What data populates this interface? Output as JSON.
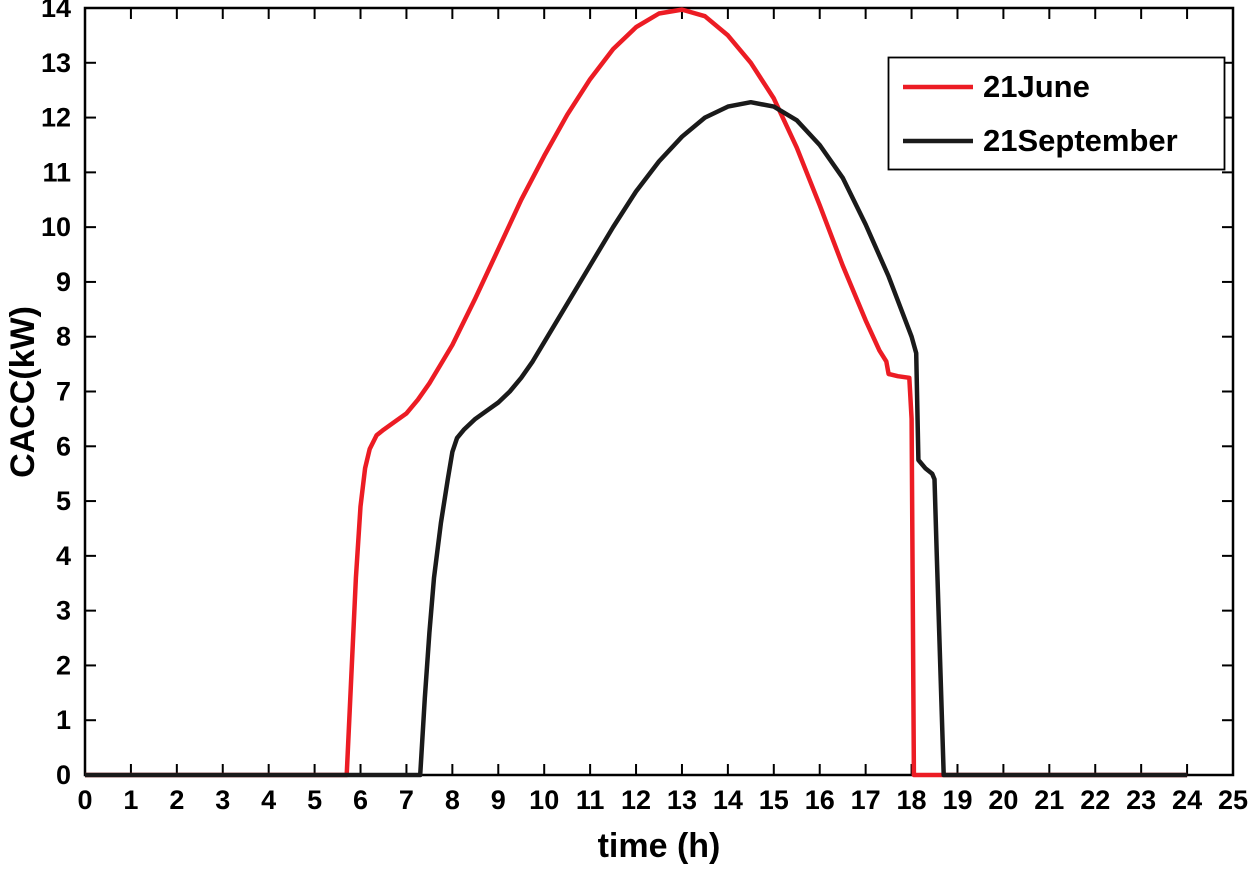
{
  "chart_data": {
    "type": "line",
    "title": "",
    "xlabel": "time (h)",
    "ylabel": "CACC(kW)",
    "xlim": [
      0,
      25
    ],
    "ylim": [
      0,
      14
    ],
    "xticks": [
      0,
      1,
      2,
      3,
      4,
      5,
      6,
      7,
      8,
      9,
      10,
      11,
      12,
      13,
      14,
      15,
      16,
      17,
      18,
      19,
      20,
      21,
      22,
      23,
      24,
      25
    ],
    "yticks": [
      0,
      1,
      2,
      3,
      4,
      5,
      6,
      7,
      8,
      9,
      10,
      11,
      12,
      13,
      14
    ],
    "grid": false,
    "legend_position": "top-right",
    "axis_color": "#000000",
    "series": [
      {
        "name": "21June",
        "color": "#ec1c24",
        "points": [
          [
            0,
            0
          ],
          [
            1,
            0
          ],
          [
            2,
            0
          ],
          [
            3,
            0
          ],
          [
            4,
            0
          ],
          [
            5,
            0
          ],
          [
            5.7,
            0
          ],
          [
            5.8,
            1.8
          ],
          [
            5.9,
            3.6
          ],
          [
            6.0,
            4.9
          ],
          [
            6.1,
            5.6
          ],
          [
            6.2,
            5.95
          ],
          [
            6.35,
            6.2
          ],
          [
            6.5,
            6.3
          ],
          [
            6.75,
            6.45
          ],
          [
            7.0,
            6.6
          ],
          [
            7.25,
            6.85
          ],
          [
            7.5,
            7.15
          ],
          [
            7.75,
            7.5
          ],
          [
            8.0,
            7.85
          ],
          [
            8.5,
            8.7
          ],
          [
            9.0,
            9.6
          ],
          [
            9.5,
            10.5
          ],
          [
            10.0,
            11.3
          ],
          [
            10.5,
            12.05
          ],
          [
            11.0,
            12.7
          ],
          [
            11.5,
            13.25
          ],
          [
            12.0,
            13.65
          ],
          [
            12.5,
            13.9
          ],
          [
            13.0,
            13.97
          ],
          [
            13.5,
            13.85
          ],
          [
            14.0,
            13.5
          ],
          [
            14.5,
            13.0
          ],
          [
            15.0,
            12.35
          ],
          [
            15.5,
            11.45
          ],
          [
            16.0,
            10.4
          ],
          [
            16.5,
            9.3
          ],
          [
            17.0,
            8.3
          ],
          [
            17.3,
            7.75
          ],
          [
            17.45,
            7.55
          ],
          [
            17.5,
            7.32
          ],
          [
            17.7,
            7.28
          ],
          [
            17.95,
            7.25
          ],
          [
            18.0,
            6.5
          ],
          [
            18.05,
            0
          ],
          [
            19,
            0
          ],
          [
            20,
            0
          ],
          [
            21,
            0
          ],
          [
            22,
            0
          ],
          [
            23,
            0
          ],
          [
            24,
            0
          ]
        ]
      },
      {
        "name": "21September",
        "color": "#1a1a1a",
        "points": [
          [
            0,
            0
          ],
          [
            1,
            0
          ],
          [
            2,
            0
          ],
          [
            3,
            0
          ],
          [
            4,
            0
          ],
          [
            5,
            0
          ],
          [
            6,
            0
          ],
          [
            7,
            0
          ],
          [
            7.3,
            0
          ],
          [
            7.4,
            1.4
          ],
          [
            7.5,
            2.6
          ],
          [
            7.6,
            3.6
          ],
          [
            7.75,
            4.6
          ],
          [
            7.9,
            5.4
          ],
          [
            8.0,
            5.9
          ],
          [
            8.1,
            6.15
          ],
          [
            8.25,
            6.3
          ],
          [
            8.5,
            6.5
          ],
          [
            8.75,
            6.65
          ],
          [
            9.0,
            6.8
          ],
          [
            9.25,
            7.0
          ],
          [
            9.5,
            7.25
          ],
          [
            9.75,
            7.55
          ],
          [
            10.0,
            7.9
          ],
          [
            10.5,
            8.6
          ],
          [
            11.0,
            9.3
          ],
          [
            11.5,
            10.0
          ],
          [
            12.0,
            10.65
          ],
          [
            12.5,
            11.2
          ],
          [
            13.0,
            11.65
          ],
          [
            13.5,
            12.0
          ],
          [
            14.0,
            12.2
          ],
          [
            14.5,
            12.28
          ],
          [
            15.0,
            12.2
          ],
          [
            15.5,
            11.95
          ],
          [
            16.0,
            11.5
          ],
          [
            16.5,
            10.9
          ],
          [
            17.0,
            10.05
          ],
          [
            17.5,
            9.1
          ],
          [
            18.0,
            8.0
          ],
          [
            18.1,
            7.7
          ],
          [
            18.15,
            5.75
          ],
          [
            18.3,
            5.6
          ],
          [
            18.45,
            5.5
          ],
          [
            18.5,
            5.4
          ],
          [
            18.55,
            4.0
          ],
          [
            18.7,
            0
          ],
          [
            19,
            0
          ],
          [
            20,
            0
          ],
          [
            21,
            0
          ],
          [
            22,
            0
          ],
          [
            23,
            0
          ],
          [
            24,
            0
          ]
        ]
      }
    ]
  }
}
